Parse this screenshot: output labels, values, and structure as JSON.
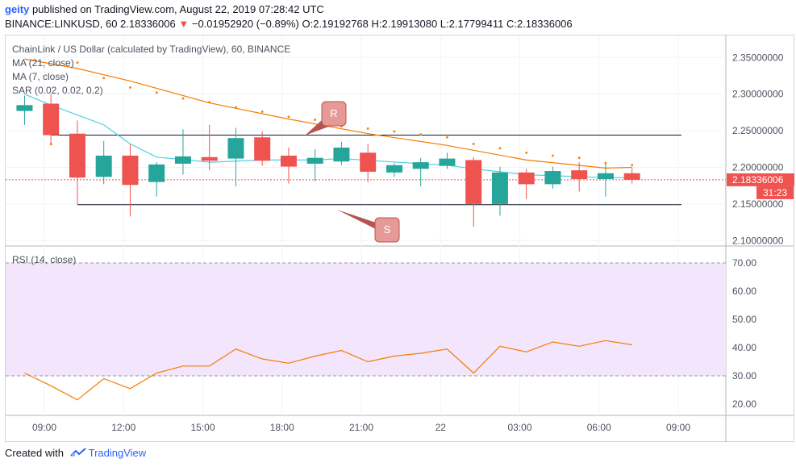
{
  "header": {
    "user": "geity",
    "published_text": " published on TradingView.com, August 22, 2019 07:28:42 UTC",
    "symbol_line": "BINANCE:LINKUSD, 60  2.18336006",
    "change": "−0.01952920 (−0.89%)",
    "ohlc": "O:2.19192768  H:2.19913080  L:2.17799411  C:2.18336006"
  },
  "legend": {
    "title": "ChainLink / US Dollar (calculated by TradingView), 60, BINANCE",
    "ma21": "MA (21, close)",
    "ma7": "MA (7, close)",
    "sar": "SAR (0.02, 0.02, 0.2)",
    "rsi": "RSI (14, close)"
  },
  "annotations": {
    "resistance": "R",
    "support": "S"
  },
  "price_label": "2.18336006",
  "countdown_label": "31:23",
  "footer": {
    "created_with": "Created with",
    "brand": "TradingView"
  },
  "colors": {
    "up": "#26a69a",
    "down": "#ef5350",
    "ma21": "#f57c00",
    "ma7": "#4dd0e1",
    "rsi": "#f57c00",
    "rsi_band": "#f3e5fc"
  },
  "chart_data": {
    "type": "candlestick",
    "price_axis": {
      "ticks": [
        "2.35000000",
        "2.30000000",
        "2.25000000",
        "2.20000000",
        "2.15000000",
        "2.10000000"
      ],
      "values": [
        2.35,
        2.3,
        2.25,
        2.2,
        2.15,
        2.1
      ]
    },
    "rsi_axis": {
      "ticks": [
        "70.00",
        "60.00",
        "50.00",
        "40.00",
        "30.00",
        "20.00"
      ],
      "values": [
        70,
        60,
        50,
        40,
        30,
        20
      ],
      "band": [
        30,
        70
      ]
    },
    "x_ticks": [
      "09:00",
      "12:00",
      "15:00",
      "18:00",
      "21:00",
      "22",
      "03:00",
      "06:00",
      "09:00"
    ],
    "x_tick_hours": [
      9,
      12,
      15,
      18,
      21,
      24,
      27,
      30,
      33
    ],
    "candles": [
      {
        "t": 8.25,
        "o": 2.277,
        "h": 2.298,
        "l": 2.258,
        "c": 2.285
      },
      {
        "t": 9.25,
        "o": 2.287,
        "h": 2.3,
        "l": 2.23,
        "c": 2.244
      },
      {
        "t": 10.25,
        "o": 2.246,
        "h": 2.264,
        "l": 2.15,
        "c": 2.186
      },
      {
        "t": 11.25,
        "o": 2.187,
        "h": 2.236,
        "l": 2.177,
        "c": 2.216
      },
      {
        "t": 12.25,
        "o": 2.216,
        "h": 2.232,
        "l": 2.133,
        "c": 2.176
      },
      {
        "t": 13.25,
        "o": 2.18,
        "h": 2.207,
        "l": 2.16,
        "c": 2.204
      },
      {
        "t": 14.25,
        "o": 2.205,
        "h": 2.252,
        "l": 2.19,
        "c": 2.215
      },
      {
        "t": 15.25,
        "o": 2.214,
        "h": 2.258,
        "l": 2.196,
        "c": 2.209
      },
      {
        "t": 16.25,
        "o": 2.212,
        "h": 2.254,
        "l": 2.174,
        "c": 2.24
      },
      {
        "t": 17.25,
        "o": 2.241,
        "h": 2.249,
        "l": 2.202,
        "c": 2.209
      },
      {
        "t": 18.25,
        "o": 2.216,
        "h": 2.227,
        "l": 2.178,
        "c": 2.201
      },
      {
        "t": 19.25,
        "o": 2.205,
        "h": 2.225,
        "l": 2.181,
        "c": 2.213
      },
      {
        "t": 20.25,
        "o": 2.208,
        "h": 2.235,
        "l": 2.203,
        "c": 2.227
      },
      {
        "t": 21.25,
        "o": 2.22,
        "h": 2.232,
        "l": 2.18,
        "c": 2.194
      },
      {
        "t": 22.25,
        "o": 2.193,
        "h": 2.206,
        "l": 2.187,
        "c": 2.203
      },
      {
        "t": 23.25,
        "o": 2.198,
        "h": 2.213,
        "l": 2.174,
        "c": 2.207
      },
      {
        "t": 24.25,
        "o": 2.202,
        "h": 2.22,
        "l": 2.198,
        "c": 2.212
      },
      {
        "t": 25.25,
        "o": 2.21,
        "h": 2.214,
        "l": 2.119,
        "c": 2.15
      },
      {
        "t": 26.25,
        "o": 2.15,
        "h": 2.201,
        "l": 2.134,
        "c": 2.193
      },
      {
        "t": 27.25,
        "o": 2.193,
        "h": 2.198,
        "l": 2.157,
        "c": 2.177
      },
      {
        "t": 28.25,
        "o": 2.177,
        "h": 2.201,
        "l": 2.171,
        "c": 2.195
      },
      {
        "t": 29.25,
        "o": 2.196,
        "h": 2.207,
        "l": 2.167,
        "c": 2.184
      },
      {
        "t": 30.25,
        "o": 2.184,
        "h": 2.207,
        "l": 2.16,
        "c": 2.192
      },
      {
        "t": 31.25,
        "o": 2.192,
        "h": 2.199,
        "l": 2.178,
        "c": 2.183
      }
    ],
    "ma21": [
      [
        8.25,
        2.348
      ],
      [
        10.25,
        2.335
      ],
      [
        12.25,
        2.318
      ],
      [
        15.25,
        2.288
      ],
      [
        18.25,
        2.266
      ],
      [
        21.25,
        2.246
      ],
      [
        24.25,
        2.23
      ],
      [
        27.25,
        2.21
      ],
      [
        30.25,
        2.199
      ],
      [
        31.25,
        2.2
      ]
    ],
    "ma7": [
      [
        8.25,
        2.3
      ],
      [
        9.25,
        2.285
      ],
      [
        11.25,
        2.258
      ],
      [
        12.25,
        2.232
      ],
      [
        13.25,
        2.214
      ],
      [
        15.25,
        2.207
      ],
      [
        17.25,
        2.21
      ],
      [
        19.25,
        2.21
      ],
      [
        20.25,
        2.212
      ],
      [
        23.25,
        2.205
      ],
      [
        24.25,
        2.203
      ],
      [
        25.25,
        2.198
      ],
      [
        27.25,
        2.19
      ],
      [
        30.25,
        2.186
      ],
      [
        31.25,
        2.186
      ]
    ],
    "sar": [
      [
        9.25,
        2.232
      ],
      [
        10.25,
        2.343
      ],
      [
        11.25,
        2.322
      ],
      [
        12.25,
        2.309
      ],
      [
        13.25,
        2.302
      ],
      [
        14.25,
        2.294
      ],
      [
        15.25,
        2.289
      ],
      [
        16.25,
        2.282
      ],
      [
        17.25,
        2.276
      ],
      [
        18.25,
        2.269
      ],
      [
        19.25,
        2.265
      ],
      [
        20.25,
        2.256
      ],
      [
        21.25,
        2.253
      ],
      [
        22.25,
        2.249
      ],
      [
        23.25,
        2.245
      ],
      [
        24.25,
        2.241
      ],
      [
        25.25,
        2.232
      ],
      [
        26.25,
        2.226
      ],
      [
        27.25,
        2.22
      ],
      [
        28.25,
        2.216
      ],
      [
        29.25,
        2.213
      ],
      [
        30.25,
        2.206
      ],
      [
        31.25,
        2.203
      ]
    ],
    "resistance_line": {
      "from": 9.25,
      "to": 33.0,
      "price": 2.244
    },
    "support_line": {
      "from": 10.25,
      "to": 33.0,
      "price": 2.149
    },
    "rsi": [
      [
        8.25,
        31
      ],
      [
        9.25,
        26.5
      ],
      [
        10.25,
        21.5
      ],
      [
        11.25,
        29
      ],
      [
        12.25,
        25.5
      ],
      [
        13.25,
        31
      ],
      [
        14.25,
        33.5
      ],
      [
        15.25,
        33.5
      ],
      [
        16.25,
        39.5
      ],
      [
        17.25,
        36
      ],
      [
        18.25,
        34.5
      ],
      [
        19.25,
        37
      ],
      [
        20.25,
        39
      ],
      [
        21.25,
        35
      ],
      [
        22.25,
        37
      ],
      [
        23.25,
        38
      ],
      [
        24.25,
        39.5
      ],
      [
        25.25,
        31
      ],
      [
        26.25,
        40.5
      ],
      [
        27.25,
        38.5
      ],
      [
        28.25,
        42
      ],
      [
        29.25,
        40.5
      ],
      [
        30.25,
        42.5
      ],
      [
        31.25,
        41
      ]
    ]
  }
}
